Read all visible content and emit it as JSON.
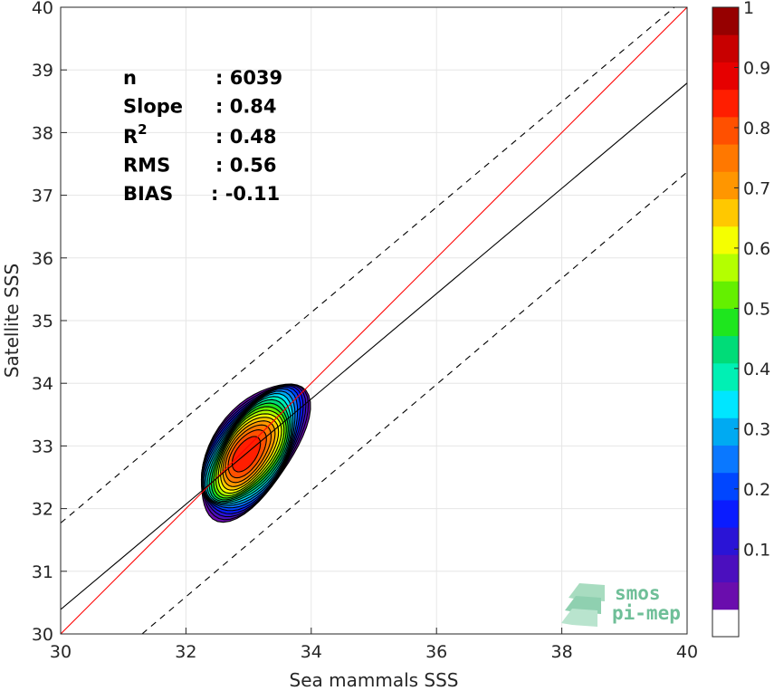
{
  "chart_data": {
    "type": "heatmap",
    "subtype": "density-scatter",
    "xlabel": "Sea mammals SSS",
    "ylabel": "Satellite SSS",
    "xlim": [
      30,
      40
    ],
    "ylim": [
      30,
      40
    ],
    "xticks": [
      "30",
      "32",
      "34",
      "36",
      "38",
      "40"
    ],
    "yticks": [
      "30",
      "31",
      "32",
      "33",
      "34",
      "35",
      "36",
      "37",
      "38",
      "39",
      "40"
    ],
    "grid": true,
    "stats": [
      {
        "label": "n",
        "value": ": 6039"
      },
      {
        "label": "Slope",
        "value": ": 0.84"
      },
      {
        "label": "R",
        "sup": "2",
        "value": ": 0.48"
      },
      {
        "label": "RMS",
        "value": ": 0.56"
      },
      {
        "label": "BIAS",
        "value": ": -0.11"
      }
    ],
    "lines": {
      "identity": {
        "x": [
          30,
          40
        ],
        "y": [
          30,
          40
        ],
        "color": "#ff0000"
      },
      "regression": {
        "x": [
          30,
          40
        ],
        "y": [
          30.39,
          38.79
        ],
        "color": "#000000"
      },
      "upper_bound": {
        "x": [
          30,
          40
        ],
        "y": [
          31.77,
          40.17
        ],
        "color": "#000000",
        "dash": true
      },
      "lower_bound": {
        "x": [
          31.3,
          40
        ],
        "y": [
          30,
          37.37
        ],
        "color": "#000000",
        "dash": true
      }
    },
    "density": {
      "center": [
        32.93,
        32.85
      ],
      "levels": [
        0.05,
        0.1,
        0.15,
        0.2,
        0.25,
        0.3,
        0.35,
        0.4,
        0.45,
        0.5,
        0.55,
        0.6,
        0.65,
        0.7,
        0.75,
        0.8,
        0.85,
        0.9,
        0.95
      ],
      "outer_extent": {
        "x": [
          32.1,
          34.05
        ],
        "y": [
          31.65,
          34.0
        ]
      }
    },
    "colorbar": {
      "ticks": [
        "0.1",
        "0.2",
        "0.3",
        "0.4",
        "0.5",
        "0.6",
        "0.7",
        "0.8",
        "0.9",
        "1"
      ],
      "range": [
        0,
        1
      ],
      "colors": [
        "#ffffff",
        "#6a0dad",
        "#4b0fbe",
        "#2a14d6",
        "#0a1cff",
        "#0046ff",
        "#0a78ff",
        "#00aaf2",
        "#00e6ff",
        "#00f0b4",
        "#00dc78",
        "#1ee61e",
        "#64f000",
        "#b4ff00",
        "#f5ff00",
        "#ffc800",
        "#ff9600",
        "#ff7800",
        "#ff5000",
        "#ff1e00",
        "#e60000",
        "#c80000",
        "#960000"
      ]
    }
  },
  "logo": {
    "line1": "smos",
    "line2": "pi-mep"
  }
}
